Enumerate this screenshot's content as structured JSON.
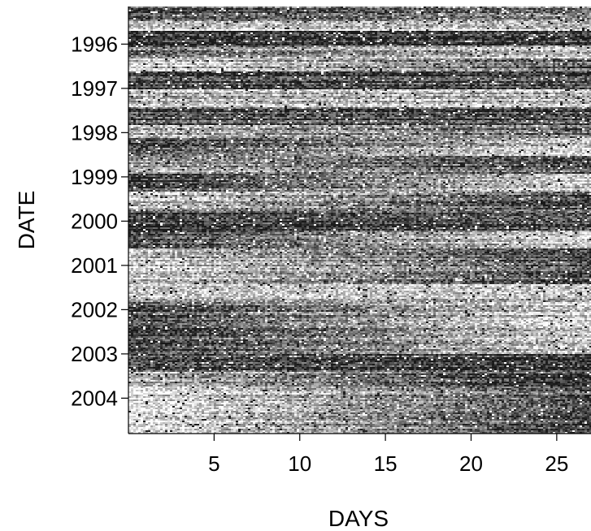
{
  "chart_data": {
    "type": "heatmap",
    "title": "",
    "xlabel": "DAYS",
    "ylabel": "DATE",
    "x_ticks": [
      {
        "value": 5,
        "label": "5"
      },
      {
        "value": 10,
        "label": "10"
      },
      {
        "value": 15,
        "label": "15"
      },
      {
        "value": 20,
        "label": "20"
      },
      {
        "value": 25,
        "label": "25"
      }
    ],
    "y_ticks": [
      {
        "value": 1996,
        "label": "1996"
      },
      {
        "value": 1997,
        "label": "1997"
      },
      {
        "value": 1998,
        "label": "1998"
      },
      {
        "value": 1999,
        "label": "1999"
      },
      {
        "value": 2000,
        "label": "2000"
      },
      {
        "value": 2001,
        "label": "2001"
      },
      {
        "value": 2002,
        "label": "2002"
      },
      {
        "value": 2003,
        "label": "2003"
      },
      {
        "value": 2004,
        "label": "2004"
      }
    ],
    "xlim": [
      0,
      27
    ],
    "ylim": [
      1995.15,
      2004.8
    ],
    "colormap": "grayscale",
    "grid": false,
    "legend": "none",
    "colors": {
      "low": "#ffffff",
      "high": "#1a1a1a"
    },
    "bands": [
      {
        "y0": 1995.15,
        "y1": 1995.45,
        "shade_start": 0.75,
        "shade_end": 0.55
      },
      {
        "y0": 1995.45,
        "y1": 1995.7,
        "shade_start": 0.15,
        "shade_end": 0.2
      },
      {
        "y0": 1995.7,
        "y1": 1996.0,
        "shade_start": 0.85,
        "shade_end": 0.8
      },
      {
        "y0": 1996.0,
        "y1": 1996.3,
        "shade_start": 0.6,
        "shade_end": 0.25
      },
      {
        "y0": 1996.3,
        "y1": 1996.6,
        "shade_start": 0.2,
        "shade_end": 0.7
      },
      {
        "y0": 1996.6,
        "y1": 1997.0,
        "shade_start": 0.8,
        "shade_end": 0.75
      },
      {
        "y0": 1997.0,
        "y1": 1997.4,
        "shade_start": 0.3,
        "shade_end": 0.3
      },
      {
        "y0": 1997.4,
        "y1": 1997.8,
        "shade_start": 0.75,
        "shade_end": 0.8
      },
      {
        "y0": 1997.8,
        "y1": 1998.1,
        "shade_start": 0.35,
        "shade_end": 0.65
      },
      {
        "y0": 1998.1,
        "y1": 1998.5,
        "shade_start": 0.8,
        "shade_end": 0.2
      },
      {
        "y0": 1998.5,
        "y1": 1998.9,
        "shade_start": 0.4,
        "shade_end": 0.75
      },
      {
        "y0": 1998.9,
        "y1": 1999.3,
        "shade_start": 0.75,
        "shade_end": 0.15
      },
      {
        "y0": 1999.3,
        "y1": 1999.7,
        "shade_start": 0.25,
        "shade_end": 0.8
      },
      {
        "y0": 1999.7,
        "y1": 2000.2,
        "shade_start": 0.8,
        "shade_end": 0.7
      },
      {
        "y0": 2000.2,
        "y1": 2000.6,
        "shade_start": 0.75,
        "shade_end": 0.2
      },
      {
        "y0": 2000.6,
        "y1": 2001.0,
        "shade_start": 0.25,
        "shade_end": 0.75
      },
      {
        "y0": 2001.0,
        "y1": 2001.4,
        "shade_start": 0.2,
        "shade_end": 0.75
      },
      {
        "y0": 2001.4,
        "y1": 2001.8,
        "shade_start": 0.3,
        "shade_end": 0.3
      },
      {
        "y0": 2001.8,
        "y1": 2002.2,
        "shade_start": 0.8,
        "shade_end": 0.2
      },
      {
        "y0": 2002.2,
        "y1": 2002.6,
        "shade_start": 0.85,
        "shade_end": 0.25
      },
      {
        "y0": 2002.6,
        "y1": 2003.0,
        "shade_start": 0.8,
        "shade_end": 0.25
      },
      {
        "y0": 2003.0,
        "y1": 2003.4,
        "shade_start": 0.75,
        "shade_end": 0.85
      },
      {
        "y0": 2003.4,
        "y1": 2003.8,
        "shade_start": 0.25,
        "shade_end": 0.85
      },
      {
        "y0": 2003.8,
        "y1": 2004.2,
        "shade_start": 0.15,
        "shade_end": 0.8
      },
      {
        "y0": 2004.2,
        "y1": 2004.8,
        "shade_start": 0.15,
        "shade_end": 0.85
      }
    ]
  }
}
